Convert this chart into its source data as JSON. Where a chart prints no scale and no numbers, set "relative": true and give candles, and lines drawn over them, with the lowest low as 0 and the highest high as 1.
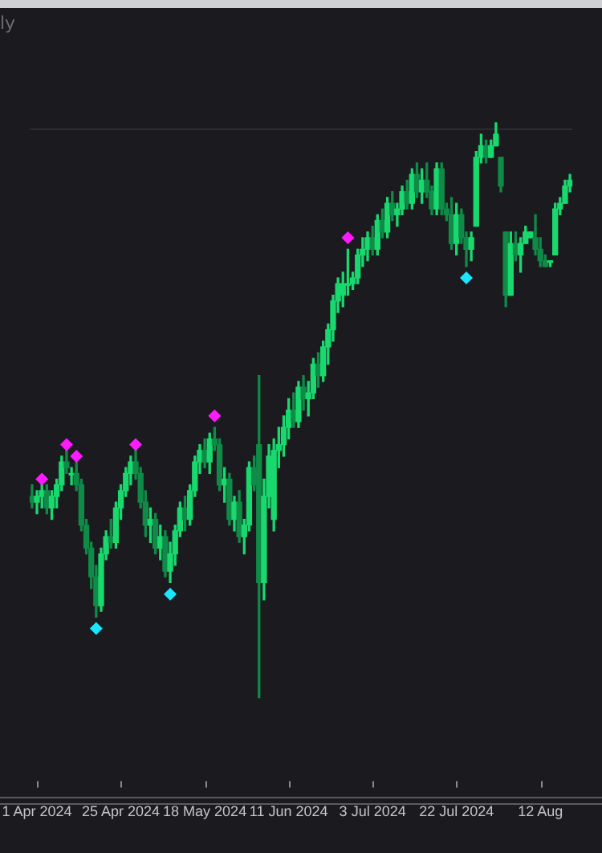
{
  "chart_data": {
    "type": "candlestick",
    "title": "ly",
    "relative": true,
    "legend": false,
    "grid": false,
    "tick_labels": "x",
    "marker": "diamond",
    "categories": [
      null,
      "1 Apr 2024",
      null,
      null,
      null,
      null,
      null,
      null,
      null,
      null,
      null,
      null,
      null,
      null,
      null,
      null,
      null,
      null,
      "25 Apr 2024",
      null,
      null,
      null,
      null,
      null,
      null,
      null,
      null,
      null,
      null,
      null,
      null,
      null,
      null,
      null,
      null,
      "18 May 2024",
      null,
      null,
      null,
      null,
      null,
      null,
      null,
      null,
      null,
      null,
      null,
      null,
      null,
      null,
      null,
      null,
      "11 Jun 2024",
      null,
      null,
      null,
      null,
      null,
      null,
      null,
      null,
      null,
      null,
      null,
      null,
      null,
      null,
      null,
      null,
      "3 Jul 2024",
      null,
      null,
      null,
      null,
      null,
      null,
      null,
      null,
      null,
      null,
      null,
      null,
      null,
      null,
      null,
      null,
      "22 Jul 2024",
      null,
      null,
      null,
      null,
      null,
      null,
      null,
      null,
      null,
      null,
      null,
      null,
      null,
      null,
      null,
      null,
      "12 Aug",
      null,
      null,
      null,
      null,
      null,
      null
    ],
    "ref_lines": [
      {
        "axis": "y",
        "value": 0.99,
        "color": "#2c2c31"
      }
    ],
    "series": [
      {
        "colors": [
          "#0f8a47",
          "#19d86e",
          "#19d86e",
          "#0f8a47",
          "#19d86e",
          "#19d86e",
          "#19d86e",
          "#0f8a47",
          "#19d86e",
          "#0f8a47",
          "#0f8a47",
          "#0f8a47",
          "#0f8a47",
          "#0f8a47",
          "#19d86e",
          "#19d86e",
          "#0f8a47",
          "#19d86e",
          "#19d86e",
          "#19d86e",
          "#19d86e",
          "#0f8a47",
          "#0f8a47",
          "#0f8a47",
          "#19d86e",
          "#0f8a47",
          "#19d86e",
          "#0f8a47",
          "#19d86e",
          "#19d86e",
          "#19d86e",
          "#0f8a47",
          "#19d86e",
          "#19d86e",
          "#19d86e",
          "#0f8a47",
          "#19d86e",
          "#0f8a47",
          "#0f8a47",
          "#19d86e",
          "#0f8a47",
          "#19d86e",
          "#0f8a47",
          "#19d86e",
          "#19d86e",
          "#0f8a47",
          "#0f8a47",
          "#19d86e",
          "#19d86e",
          "#19d86e",
          "#19d86e",
          "#19d86e",
          "#19d86e",
          "#0f8a47",
          "#19d86e",
          "#0f8a47",
          "#19d86e",
          "#19d86e",
          "#0f8a47",
          "#19d86e",
          "#19d86e",
          "#19d86e",
          "#19d86e",
          "#19d86e",
          "#19d86e",
          "#19d86e",
          "#19d86e",
          "#19d86e",
          "#19d86e",
          "#0f8a47",
          "#19d86e",
          "#0f8a47",
          "#19d86e",
          "#0f8a47",
          "#19d86e",
          "#19d86e",
          "#0f8a47",
          "#19d86e",
          "#0f8a47",
          "#19d86e",
          "#0f8a47",
          "#0f8a47",
          "#19d86e",
          "#0f8a47",
          "#0f8a47",
          "#0f8a47",
          "#19d86e",
          "#0f8a47",
          "#0f8a47",
          "#19d86e",
          "#19d86e",
          "#19d86e",
          "#0f8a47",
          "#19d86e",
          "#19d86e",
          "#0f8a47",
          "#0f8a47",
          "#19d86e",
          "#0f8a47",
          "#19d86e",
          "#19d86e",
          "#19d86e",
          "#0f8a47",
          "#0f8a47",
          "#0f8a47",
          "#19d86e",
          "#19d86e",
          "#19d86e",
          "#19d86e",
          "#19d86e"
        ],
        "ohlc": [
          [
            0.35,
            0.37,
            0.33,
            0.34
          ],
          [
            0.34,
            0.36,
            0.32,
            0.35
          ],
          [
            0.35,
            0.37,
            0.33,
            0.36
          ],
          [
            0.36,
            0.37,
            0.32,
            0.33
          ],
          [
            0.33,
            0.36,
            0.31,
            0.35
          ],
          [
            0.35,
            0.38,
            0.33,
            0.37
          ],
          [
            0.37,
            0.42,
            0.36,
            0.41
          ],
          [
            0.41,
            0.43,
            0.39,
            0.4
          ],
          [
            0.39,
            0.4,
            0.37,
            0.39
          ],
          [
            0.39,
            0.41,
            0.36,
            0.37
          ],
          [
            0.37,
            0.38,
            0.29,
            0.3
          ],
          [
            0.3,
            0.31,
            0.25,
            0.26
          ],
          [
            0.26,
            0.27,
            0.19,
            0.21
          ],
          [
            0.21,
            0.23,
            0.14,
            0.16
          ],
          [
            0.16,
            0.26,
            0.15,
            0.25
          ],
          [
            0.25,
            0.29,
            0.24,
            0.28
          ],
          [
            0.28,
            0.31,
            0.26,
            0.27
          ],
          [
            0.27,
            0.34,
            0.26,
            0.33
          ],
          [
            0.33,
            0.37,
            0.31,
            0.36
          ],
          [
            0.36,
            0.4,
            0.35,
            0.39
          ],
          [
            0.39,
            0.42,
            0.37,
            0.41
          ],
          [
            0.41,
            0.43,
            0.38,
            0.39
          ],
          [
            0.39,
            0.4,
            0.33,
            0.34
          ],
          [
            0.34,
            0.36,
            0.28,
            0.3
          ],
          [
            0.3,
            0.33,
            0.27,
            0.31
          ],
          [
            0.31,
            0.32,
            0.25,
            0.26
          ],
          [
            0.26,
            0.3,
            0.24,
            0.28
          ],
          [
            0.28,
            0.29,
            0.21,
            0.22
          ],
          [
            0.22,
            0.27,
            0.2,
            0.25
          ],
          [
            0.25,
            0.3,
            0.23,
            0.29
          ],
          [
            0.29,
            0.34,
            0.28,
            0.33
          ],
          [
            0.33,
            0.35,
            0.29,
            0.31
          ],
          [
            0.31,
            0.37,
            0.3,
            0.36
          ],
          [
            0.36,
            0.42,
            0.35,
            0.41
          ],
          [
            0.41,
            0.44,
            0.39,
            0.43
          ],
          [
            0.43,
            0.45,
            0.4,
            0.41
          ],
          [
            0.41,
            0.46,
            0.39,
            0.45
          ],
          [
            0.45,
            0.47,
            0.43,
            0.44
          ],
          [
            0.44,
            0.45,
            0.36,
            0.37
          ],
          [
            0.37,
            0.4,
            0.34,
            0.38
          ],
          [
            0.38,
            0.39,
            0.3,
            0.31
          ],
          [
            0.31,
            0.35,
            0.29,
            0.34
          ],
          [
            0.34,
            0.36,
            0.27,
            0.28
          ],
          [
            0.28,
            0.31,
            0.25,
            0.3
          ],
          [
            0.3,
            0.41,
            0.29,
            0.4
          ],
          [
            0.4,
            0.42,
            0.36,
            0.37
          ],
          [
            0.44,
            0.56,
            0.0,
            0.2
          ],
          [
            0.2,
            0.38,
            0.17,
            0.35
          ],
          [
            0.35,
            0.44,
            0.33,
            0.42
          ],
          [
            0.31,
            0.45,
            0.29,
            0.43
          ],
          [
            0.43,
            0.47,
            0.4,
            0.44
          ],
          [
            0.44,
            0.49,
            0.42,
            0.47
          ],
          [
            0.47,
            0.52,
            0.45,
            0.5
          ],
          [
            0.5,
            0.53,
            0.47,
            0.48
          ],
          [
            0.48,
            0.55,
            0.47,
            0.54
          ],
          [
            0.54,
            0.56,
            0.5,
            0.52
          ],
          [
            0.52,
            0.55,
            0.49,
            0.53
          ],
          [
            0.53,
            0.59,
            0.52,
            0.58
          ],
          [
            0.58,
            0.6,
            0.54,
            0.56
          ],
          [
            0.56,
            0.62,
            0.55,
            0.61
          ],
          [
            0.61,
            0.65,
            0.58,
            0.64
          ],
          [
            0.64,
            0.7,
            0.62,
            0.69
          ],
          [
            0.69,
            0.73,
            0.67,
            0.72
          ],
          [
            0.7,
            0.74,
            0.68,
            0.72
          ],
          [
            0.72,
            0.78,
            0.7,
            0.72
          ],
          [
            0.72,
            0.74,
            0.71,
            0.73
          ],
          [
            0.73,
            0.78,
            0.72,
            0.77
          ],
          [
            0.77,
            0.8,
            0.75,
            0.78
          ],
          [
            0.78,
            0.81,
            0.76,
            0.8
          ],
          [
            0.8,
            0.82,
            0.77,
            0.78
          ],
          [
            0.78,
            0.84,
            0.77,
            0.83
          ],
          [
            0.83,
            0.85,
            0.8,
            0.81
          ],
          [
            0.81,
            0.87,
            0.8,
            0.86
          ],
          [
            0.86,
            0.88,
            0.83,
            0.84
          ],
          [
            0.84,
            0.86,
            0.82,
            0.85
          ],
          [
            0.85,
            0.89,
            0.84,
            0.88
          ],
          [
            0.88,
            0.9,
            0.85,
            0.86
          ],
          [
            0.86,
            0.92,
            0.85,
            0.91
          ],
          [
            0.91,
            0.93,
            0.87,
            0.88
          ],
          [
            0.88,
            0.92,
            0.86,
            0.9
          ],
          [
            0.9,
            0.93,
            0.87,
            0.88
          ],
          [
            0.88,
            0.89,
            0.84,
            0.85
          ],
          [
            0.85,
            0.93,
            0.84,
            0.92
          ],
          [
            0.92,
            0.93,
            0.84,
            0.85
          ],
          [
            0.85,
            0.86,
            0.83,
            0.84
          ],
          [
            0.84,
            0.87,
            0.78,
            0.79
          ],
          [
            0.79,
            0.86,
            0.77,
            0.84
          ],
          [
            0.84,
            0.85,
            0.79,
            0.8
          ],
          [
            0.8,
            0.81,
            0.75,
            0.78
          ],
          [
            0.78,
            0.81,
            0.76,
            0.8
          ],
          [
            0.82,
            0.95,
            0.82,
            0.94
          ],
          [
            0.94,
            0.98,
            0.93,
            0.96
          ],
          [
            0.96,
            0.97,
            0.93,
            0.94
          ],
          [
            0.94,
            0.97,
            0.94,
            0.96
          ],
          [
            0.96,
            1.0,
            0.96,
            0.98
          ],
          [
            0.94,
            0.94,
            0.88,
            0.89
          ],
          [
            0.81,
            0.81,
            0.68,
            0.7
          ],
          [
            0.7,
            0.81,
            0.7,
            0.79
          ],
          [
            0.79,
            0.81,
            0.76,
            0.77
          ],
          [
            0.77,
            0.8,
            0.74,
            0.79
          ],
          [
            0.79,
            0.82,
            0.79,
            0.81
          ],
          [
            0.8,
            0.81,
            0.8,
            0.81
          ],
          [
            0.8,
            0.84,
            0.77,
            0.78
          ],
          [
            0.78,
            0.8,
            0.75,
            0.76
          ],
          [
            0.76,
            0.77,
            0.75,
            0.75
          ],
          [
            0.76,
            0.76,
            0.75,
            0.76
          ],
          [
            0.77,
            0.86,
            0.77,
            0.85
          ],
          [
            0.85,
            0.87,
            0.84,
            0.86
          ],
          [
            0.86,
            0.9,
            0.86,
            0.89
          ],
          [
            0.89,
            0.91,
            0.88,
            0.9
          ]
        ]
      },
      {
        "type": "scatter",
        "color": "#ff1aff",
        "values": [
          null,
          null,
          0.38,
          null,
          null,
          null,
          null,
          0.44,
          null,
          0.42,
          null,
          null,
          null,
          null,
          null,
          null,
          null,
          null,
          null,
          null,
          null,
          0.44,
          null,
          null,
          null,
          null,
          null,
          null,
          null,
          null,
          null,
          null,
          null,
          null,
          null,
          null,
          null,
          0.49,
          null,
          null,
          null,
          null,
          null,
          null,
          null,
          null,
          null,
          null,
          null,
          null,
          null,
          null,
          null,
          null,
          null,
          null,
          null,
          null,
          null,
          null,
          null,
          null,
          null,
          null,
          0.8,
          null,
          null,
          null,
          null,
          null,
          null,
          null,
          null,
          null,
          null,
          null,
          null,
          null,
          null,
          null,
          null,
          null,
          null,
          null,
          null,
          null,
          null,
          null,
          null,
          null,
          null,
          null,
          null,
          null,
          null,
          null,
          null,
          null,
          null,
          null,
          null,
          null,
          null,
          null,
          null,
          null,
          null,
          null,
          null,
          null
        ]
      },
      {
        "type": "scatter",
        "color": "#1ae5ff",
        "values": [
          null,
          null,
          null,
          null,
          null,
          null,
          null,
          null,
          null,
          null,
          null,
          null,
          null,
          0.12,
          null,
          null,
          null,
          null,
          null,
          null,
          null,
          null,
          null,
          null,
          null,
          null,
          null,
          null,
          0.18,
          null,
          null,
          null,
          null,
          null,
          null,
          null,
          null,
          null,
          null,
          null,
          null,
          null,
          null,
          null,
          null,
          null,
          null,
          null,
          null,
          null,
          null,
          null,
          null,
          null,
          null,
          null,
          null,
          null,
          null,
          null,
          null,
          null,
          null,
          null,
          null,
          null,
          null,
          null,
          null,
          null,
          null,
          null,
          null,
          null,
          null,
          null,
          null,
          null,
          null,
          null,
          null,
          null,
          null,
          null,
          null,
          null,
          null,
          null,
          0.73,
          null,
          null,
          null,
          null,
          null,
          null,
          null,
          null,
          null,
          null,
          null,
          null,
          null,
          null,
          null,
          null,
          null,
          null,
          null,
          null,
          null
        ]
      }
    ]
  }
}
